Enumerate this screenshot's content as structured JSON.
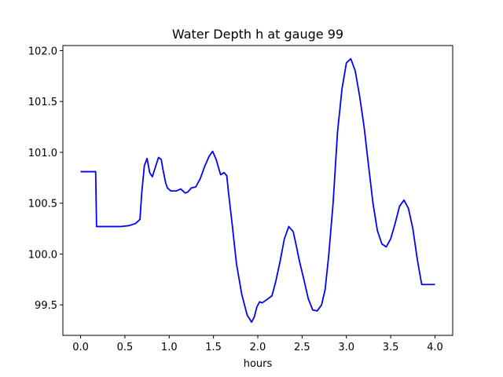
{
  "chart_data": {
    "type": "line",
    "title": "Water Depth h at gauge 99",
    "xlabel": "hours",
    "ylabel": "",
    "xlim": [
      -0.2,
      4.2
    ],
    "ylim": [
      99.2,
      102.05
    ],
    "xticks": [
      0.0,
      0.5,
      1.0,
      1.5,
      2.0,
      2.5,
      3.0,
      3.5,
      4.0
    ],
    "xtick_labels": [
      "0.0",
      "0.5",
      "1.0",
      "1.5",
      "2.0",
      "2.5",
      "3.0",
      "3.5",
      "4.0"
    ],
    "yticks": [
      99.5,
      100.0,
      100.5,
      101.0,
      101.5,
      102.0
    ],
    "ytick_labels": [
      "99.5",
      "100.0",
      "100.5",
      "101.0",
      "101.5",
      "102.0"
    ],
    "grid": false,
    "series": [
      {
        "color": "#0000ff",
        "x": [
          0.0,
          0.17,
          0.18,
          0.3,
          0.45,
          0.55,
          0.62,
          0.67,
          0.69,
          0.72,
          0.75,
          0.78,
          0.81,
          0.85,
          0.88,
          0.91,
          0.93,
          0.96,
          0.98,
          1.02,
          1.08,
          1.13,
          1.18,
          1.21,
          1.25,
          1.3,
          1.35,
          1.4,
          1.45,
          1.49,
          1.53,
          1.58,
          1.62,
          1.65,
          1.67,
          1.71,
          1.76,
          1.82,
          1.88,
          1.93,
          1.96,
          1.99,
          2.02,
          2.05,
          2.1,
          2.16,
          2.2,
          2.25,
          2.3,
          2.35,
          2.4,
          2.43,
          2.47,
          2.52,
          2.57,
          2.62,
          2.67,
          2.72,
          2.76,
          2.8,
          2.85,
          2.9,
          2.95,
          3.0,
          3.05,
          3.1,
          3.15,
          3.2,
          3.25,
          3.3,
          3.35,
          3.4,
          3.45,
          3.5,
          3.55,
          3.6,
          3.65,
          3.7,
          3.75,
          3.8,
          3.85,
          3.9,
          3.95,
          4.0
        ],
        "y": [
          100.81,
          100.81,
          100.27,
          100.27,
          100.27,
          100.28,
          100.3,
          100.34,
          100.6,
          100.87,
          100.94,
          100.8,
          100.76,
          100.87,
          100.95,
          100.93,
          100.83,
          100.7,
          100.65,
          100.62,
          100.62,
          100.64,
          100.6,
          100.61,
          100.65,
          100.66,
          100.74,
          100.86,
          100.96,
          101.01,
          100.93,
          100.78,
          100.8,
          100.77,
          100.6,
          100.3,
          99.9,
          99.6,
          99.4,
          99.33,
          99.38,
          99.48,
          99.53,
          99.52,
          99.55,
          99.59,
          99.72,
          99.92,
          100.15,
          100.27,
          100.22,
          100.1,
          99.93,
          99.75,
          99.56,
          99.45,
          99.44,
          99.5,
          99.65,
          99.98,
          100.5,
          101.2,
          101.62,
          101.88,
          101.92,
          101.8,
          101.55,
          101.25,
          100.87,
          100.5,
          100.23,
          100.1,
          100.07,
          100.15,
          100.3,
          100.47,
          100.53,
          100.45,
          100.25,
          99.95,
          99.7,
          99.7,
          99.7,
          99.7
        ]
      }
    ]
  }
}
